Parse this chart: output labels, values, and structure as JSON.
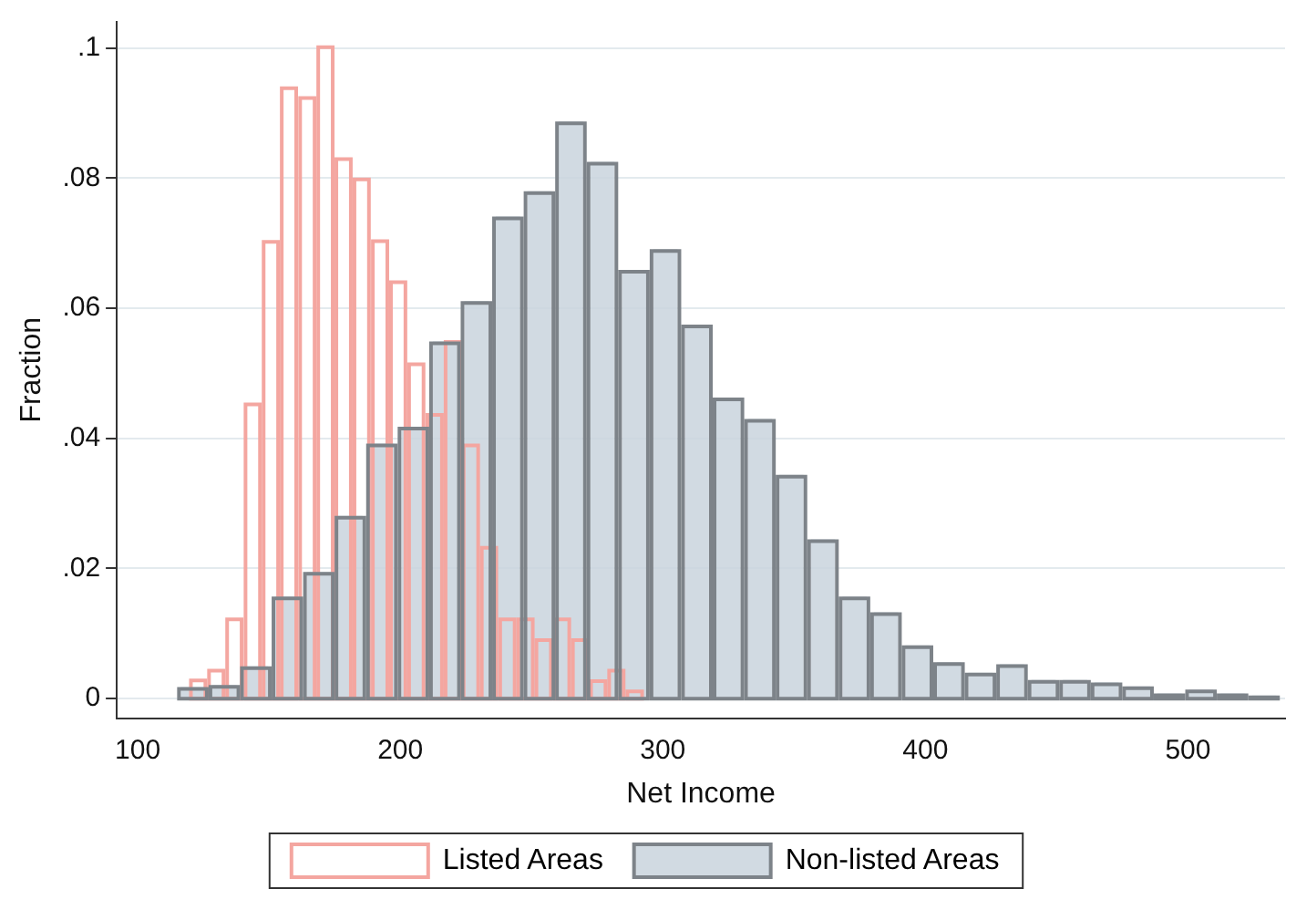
{
  "chart_data": {
    "type": "bar",
    "xlabel": "Net Income",
    "ylabel": "Fraction",
    "xlim": [
      92,
      537
    ],
    "xticks": [
      100,
      200,
      300,
      400,
      500
    ],
    "ylim": [
      -0.003,
      0.104
    ],
    "yticks": [
      0,
      {
        "value": 0.02,
        "label": ".02"
      },
      {
        "value": 0.04,
        "label": ".04"
      },
      {
        "value": 0.06,
        "label": ".06"
      },
      {
        "value": 0.08,
        "label": ".08"
      },
      {
        "value": 0.1,
        "label": ".1"
      }
    ],
    "grid": "y",
    "legend": "bottom",
    "series": [
      {
        "name": "Non-listed Areas",
        "color": "#c9d3dd",
        "x": [
          121,
          133,
          145,
          157,
          169,
          181,
          193,
          205,
          217,
          229,
          241,
          253,
          265,
          277,
          289,
          301,
          313,
          325,
          337,
          349,
          361,
          373,
          385,
          397,
          409,
          421,
          433,
          445,
          457,
          469,
          481,
          493,
          505,
          517,
          529
        ],
        "values": [
          0.0015,
          0.0018,
          0.0047,
          0.0154,
          0.0192,
          0.0278,
          0.0389,
          0.0415,
          0.0546,
          0.0608,
          0.0738,
          0.0777,
          0.0884,
          0.0822,
          0.0656,
          0.0688,
          0.0572,
          0.046,
          0.0427,
          0.0341,
          0.0242,
          0.0154,
          0.013,
          0.0079,
          0.0053,
          0.0037,
          0.005,
          0.0026,
          0.0026,
          0.0022,
          0.0016,
          0.0005,
          0.0011,
          0.0005,
          0.0002
        ]
      },
      {
        "name": "Listed Areas",
        "color": "#f4a6a0",
        "x": [
          123.0,
          129.9,
          136.8,
          143.8,
          150.7,
          157.6,
          164.6,
          171.5,
          178.4,
          185.3,
          192.3,
          199.2,
          206.1,
          213.1,
          220.0,
          226.9,
          233.8,
          240.8,
          247.7,
          254.6,
          261.6,
          268.5,
          275.4,
          282.3,
          289.3
        ],
        "values": [
          0.0028,
          0.0043,
          0.0122,
          0.0452,
          0.0702,
          0.0938,
          0.0923,
          0.1001,
          0.0829,
          0.0798,
          0.0703,
          0.064,
          0.0514,
          0.0436,
          0.0548,
          0.0389,
          0.0232,
          0.0122,
          0.0122,
          0.009,
          0.0122,
          0.009,
          0.0027,
          0.0043,
          0.0011
        ]
      }
    ]
  }
}
